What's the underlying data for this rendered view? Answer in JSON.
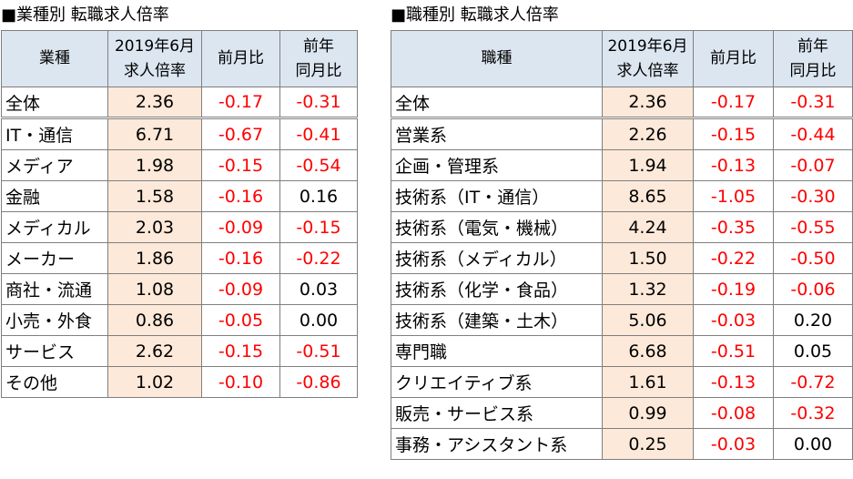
{
  "left": {
    "title": "■業種別 転職求人倍率",
    "headers": {
      "category": "業種",
      "rate_line1": "2019年6月",
      "rate_line2": "求人倍率",
      "mom": "前月比",
      "yoy_line1": "前年",
      "yoy_line2": "同月比"
    },
    "rows": [
      {
        "label": "全体",
        "rate": "2.36",
        "mom": "-0.17",
        "yoy": "-0.31"
      },
      {
        "label": "IT・通信",
        "rate": "6.71",
        "mom": "-0.67",
        "yoy": "-0.41"
      },
      {
        "label": "メディア",
        "rate": "1.98",
        "mom": "-0.15",
        "yoy": "-0.54"
      },
      {
        "label": "金融",
        "rate": "1.58",
        "mom": "-0.16",
        "yoy": "0.16"
      },
      {
        "label": "メディカル",
        "rate": "2.03",
        "mom": "-0.09",
        "yoy": "-0.15"
      },
      {
        "label": "メーカー",
        "rate": "1.86",
        "mom": "-0.16",
        "yoy": "-0.22"
      },
      {
        "label": "商社・流通",
        "rate": "1.08",
        "mom": "-0.09",
        "yoy": "0.03"
      },
      {
        "label": "小売・外食",
        "rate": "0.86",
        "mom": "-0.05",
        "yoy": "0.00"
      },
      {
        "label": "サービス",
        "rate": "2.62",
        "mom": "-0.15",
        "yoy": "-0.51"
      },
      {
        "label": "その他",
        "rate": "1.02",
        "mom": "-0.10",
        "yoy": "-0.86"
      }
    ]
  },
  "right": {
    "title": "■職種別 転職求人倍率",
    "headers": {
      "category": "職種",
      "rate_line1": "2019年6月",
      "rate_line2": "求人倍率",
      "mom": "前月比",
      "yoy_line1": "前年",
      "yoy_line2": "同月比"
    },
    "rows": [
      {
        "label": "全体",
        "rate": "2.36",
        "mom": "-0.17",
        "yoy": "-0.31"
      },
      {
        "label": "営業系",
        "rate": "2.26",
        "mom": "-0.15",
        "yoy": "-0.44"
      },
      {
        "label": "企画・管理系",
        "rate": "1.94",
        "mom": "-0.13",
        "yoy": "-0.07"
      },
      {
        "label": "技術系（IT・通信）",
        "rate": "8.65",
        "mom": "-1.05",
        "yoy": "-0.30"
      },
      {
        "label": "技術系（電気・機械）",
        "rate": "4.24",
        "mom": "-0.35",
        "yoy": "-0.55"
      },
      {
        "label": "技術系（メディカル）",
        "rate": "1.50",
        "mom": "-0.22",
        "yoy": "-0.50"
      },
      {
        "label": "技術系（化学・食品）",
        "rate": "1.32",
        "mom": "-0.19",
        "yoy": "-0.06"
      },
      {
        "label": "技術系（建築・土木）",
        "rate": "5.06",
        "mom": "-0.03",
        "yoy": "0.20"
      },
      {
        "label": "専門職",
        "rate": "6.68",
        "mom": "-0.51",
        "yoy": "0.05"
      },
      {
        "label": "クリエイティブ系",
        "rate": "1.61",
        "mom": "-0.13",
        "yoy": "-0.72"
      },
      {
        "label": "販売・サービス系",
        "rate": "0.99",
        "mom": "-0.08",
        "yoy": "-0.32"
      },
      {
        "label": "事務・アシスタント系",
        "rate": "0.25",
        "mom": "-0.03",
        "yoy": "0.00"
      }
    ]
  },
  "colors": {
    "header_bg": "#dce6f1",
    "rate_bg": "#fde9d9",
    "negative": "#ff0000",
    "border": "#7f7f7f"
  }
}
